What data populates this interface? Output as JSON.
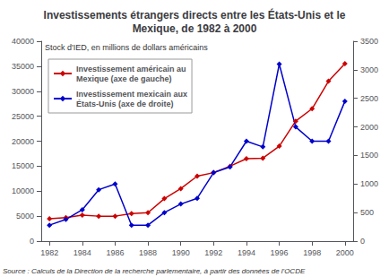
{
  "chart_data": {
    "type": "line",
    "title": "Investissements étrangers directs entre les États-Unis et le\nMexique, de 1982 à 2000",
    "subtitle": "Stock d'IED, en millions de dollars américains",
    "source": "Source : Calculs de la Direction de la recherche parlementaire, à partir des données de l'OCDE",
    "x": [
      1982,
      1983,
      1984,
      1985,
      1986,
      1987,
      1988,
      1989,
      1990,
      1991,
      1992,
      1993,
      1994,
      1995,
      1996,
      1997,
      1998,
      1999,
      2000
    ],
    "xlim": [
      1981.5,
      2000.5
    ],
    "xticks": [
      1982,
      1984,
      1986,
      1988,
      1990,
      1992,
      1994,
      1996,
      1998,
      2000
    ],
    "ylim": [
      0,
      40000
    ],
    "yticks": [
      0,
      5000,
      10000,
      15000,
      20000,
      25000,
      30000,
      35000,
      40000
    ],
    "y2lim": [
      0,
      3500
    ],
    "y2ticks": [
      0,
      500,
      1000,
      1500,
      2000,
      2500,
      3000,
      3500
    ],
    "series": [
      {
        "name": "Investissement américain au\nMexique (axe de gauche)",
        "color": "#CC0000",
        "marker": "diamond",
        "values": [
          4500,
          4700,
          5200,
          5000,
          5000,
          5500,
          5700,
          8500,
          10500,
          13000,
          13700,
          15000,
          16500,
          16600,
          19000,
          24000,
          26500,
          32000,
          35500
        ]
      },
      {
        "name": "Investissement mexicain aux\nÉtats-Unis (axe de droite)",
        "color": "#0000CC",
        "marker": "diamond",
        "axis": "y2",
        "values": [
          280,
          380,
          550,
          900,
          1000,
          280,
          280,
          500,
          650,
          750,
          1200,
          1300,
          1750,
          1650,
          3100,
          2000,
          1750,
          1750,
          2450
        ]
      }
    ],
    "legend": "upper left",
    "grid": false
  }
}
